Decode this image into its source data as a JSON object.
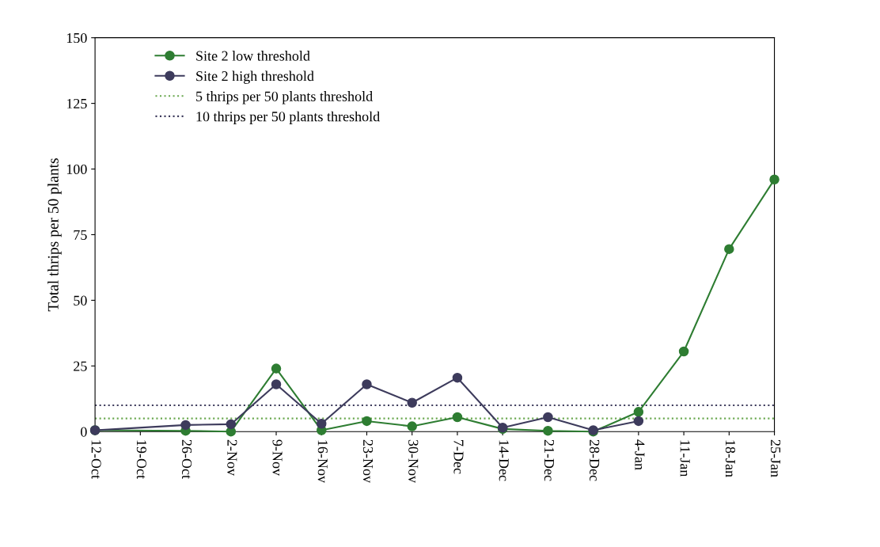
{
  "chart_data": {
    "type": "line",
    "ylabel": "Total thrips per 50 plants",
    "categories": [
      "12-Oct",
      "19-Oct",
      "26-Oct",
      "2-Nov",
      "9-Nov",
      "16-Nov",
      "23-Nov",
      "30-Nov",
      "7-Dec",
      "14-Dec",
      "21-Dec",
      "28-Dec",
      "4-Jan",
      "11-Jan",
      "18-Jan",
      "25-Jan"
    ],
    "series": [
      {
        "name": "Site 2 low threshold",
        "color": "#2e7d32",
        "values": [
          0.5,
          null,
          0.3,
          0,
          24,
          0.5,
          4,
          2,
          5.5,
          1,
          0.3,
          0,
          7.5,
          30.5,
          69.5,
          96
        ]
      },
      {
        "name": "Site 2 high threshold",
        "color": "#3d3b5c",
        "values": [
          0.5,
          null,
          2.5,
          2.8,
          18,
          3,
          18,
          11,
          20.5,
          1.5,
          5.5,
          0.5,
          4,
          null,
          null,
          null
        ]
      }
    ],
    "ref_lines": [
      {
        "axis": "y",
        "value": 5,
        "label": "5 thrips per 50 plants threshold",
        "color": "#6aa84f",
        "line_style": "dotted"
      },
      {
        "axis": "y",
        "value": 10,
        "label": "10 thrips per 50 plants threshold",
        "color": "#3d3b5c",
        "line_style": "dotted"
      }
    ],
    "ylim": [
      0,
      150
    ],
    "yticks": [
      0,
      25,
      50,
      75,
      100,
      125,
      150
    ],
    "marker": "circle",
    "line_style": "solid",
    "legend": "top left",
    "grid": false
  }
}
